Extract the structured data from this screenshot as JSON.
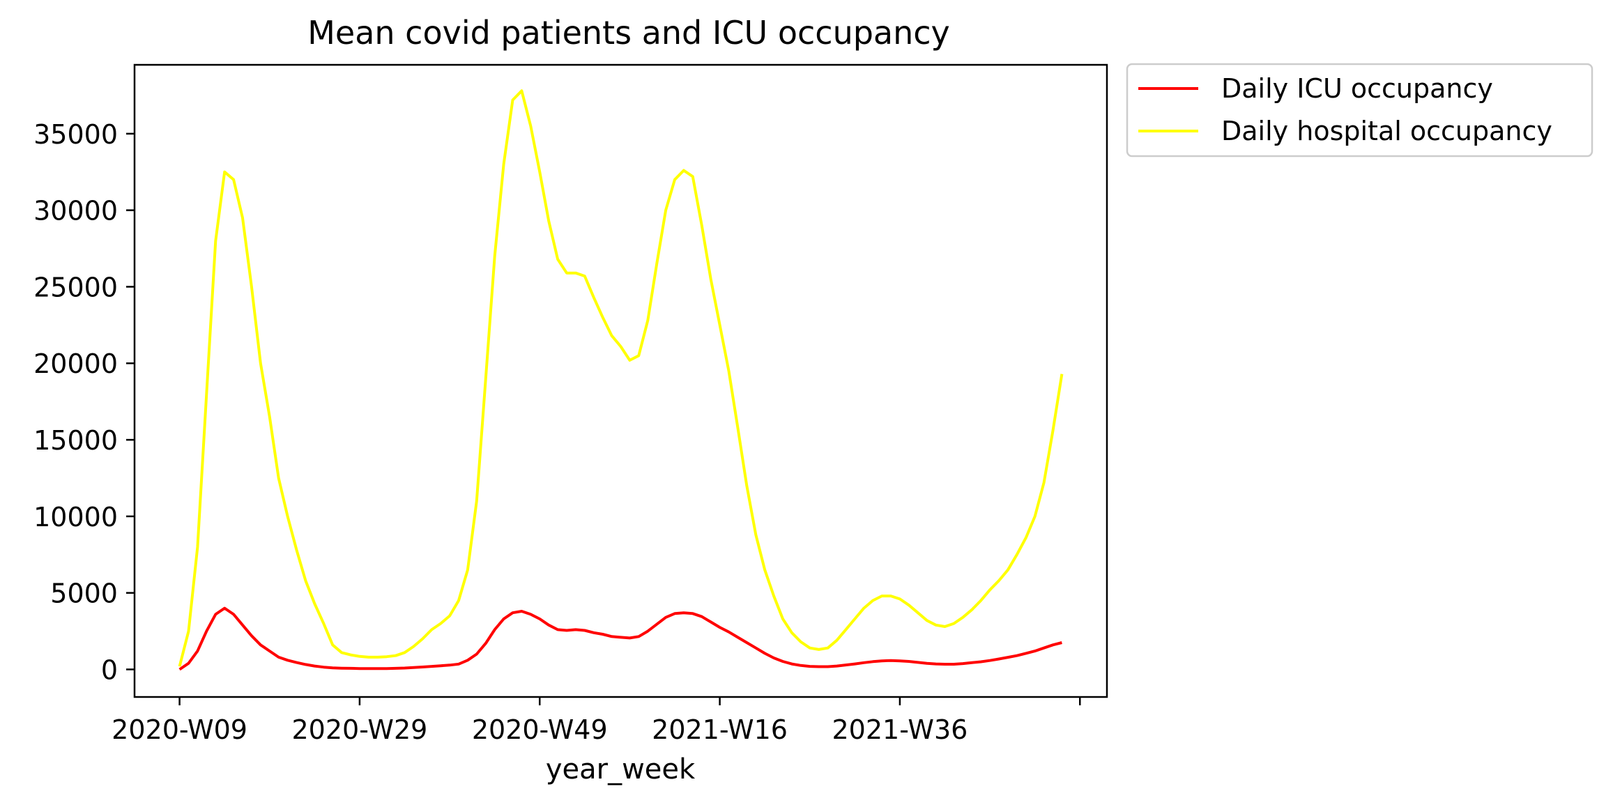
{
  "chart_data": {
    "type": "line",
    "title": "Mean covid patients and ICU occupancy",
    "xlabel": "year_week",
    "ylabel": "",
    "x_tick_labels": [
      "2020-W09",
      "2020-W29",
      "2020-W49",
      "2021-W16",
      "2021-W36",
      ""
    ],
    "y_ticks": [
      0,
      5000,
      10000,
      15000,
      20000,
      25000,
      30000,
      35000
    ],
    "ylim": [
      -1800,
      39500
    ],
    "xlim": [
      -5,
      103
    ],
    "grid": false,
    "legend_position": "outside-top-right",
    "series": [
      {
        "name": "Daily ICU occupancy",
        "color": "#ff0000",
        "x": [
          0,
          1,
          2,
          3,
          4,
          5,
          6,
          7,
          8,
          9,
          10,
          11,
          12,
          13,
          14,
          15,
          16,
          17,
          18,
          19,
          20,
          21,
          22,
          23,
          24,
          25,
          26,
          27,
          28,
          29,
          30,
          31,
          32,
          33,
          34,
          35,
          36,
          37,
          38,
          39,
          40,
          41,
          42,
          43,
          44,
          45,
          46,
          47,
          48,
          49,
          50,
          51,
          52,
          53,
          54,
          55,
          56,
          57,
          58,
          59,
          60,
          61,
          62,
          63,
          64,
          65,
          66,
          67,
          68,
          69,
          70,
          71,
          72,
          73,
          74,
          75,
          76,
          77,
          78,
          79,
          80,
          81,
          82,
          83,
          84,
          85,
          86,
          87,
          88,
          89,
          90,
          91,
          92,
          93,
          94,
          95,
          96,
          97,
          98
        ],
        "values": [
          0,
          400,
          1200,
          2500,
          3600,
          4000,
          3600,
          2900,
          2200,
          1600,
          1200,
          800,
          600,
          450,
          320,
          220,
          150,
          100,
          80,
          70,
          60,
          55,
          55,
          60,
          70,
          90,
          120,
          160,
          200,
          240,
          280,
          350,
          600,
          1000,
          1700,
          2600,
          3300,
          3700,
          3800,
          3600,
          3300,
          2900,
          2600,
          2550,
          2600,
          2550,
          2400,
          2300,
          2150,
          2100,
          2050,
          2150,
          2500,
          2950,
          3400,
          3650,
          3700,
          3650,
          3450,
          3100,
          2750,
          2450,
          2100,
          1750,
          1400,
          1050,
          750,
          520,
          360,
          260,
          200,
          180,
          180,
          220,
          290,
          360,
          440,
          510,
          560,
          580,
          560,
          520,
          460,
          400,
          360,
          340,
          340,
          380,
          440,
          500,
          580,
          680,
          790,
          900,
          1050,
          1200,
          1400,
          1600,
          1750
        ]
      },
      {
        "name": "Daily hospital occupancy",
        "color": "#ffff00",
        "x": [
          0,
          1,
          2,
          3,
          4,
          5,
          6,
          7,
          8,
          9,
          10,
          11,
          12,
          13,
          14,
          15,
          16,
          17,
          18,
          19,
          20,
          21,
          22,
          23,
          24,
          25,
          26,
          27,
          28,
          29,
          30,
          31,
          32,
          33,
          34,
          35,
          36,
          37,
          38,
          39,
          40,
          41,
          42,
          43,
          44,
          45,
          46,
          47,
          48,
          49,
          50,
          51,
          52,
          53,
          54,
          55,
          56,
          57,
          58,
          59,
          60,
          61,
          62,
          63,
          64,
          65,
          66,
          67,
          68,
          69,
          70,
          71,
          72,
          73,
          74,
          75,
          76,
          77,
          78,
          79,
          80,
          81,
          82,
          83,
          84,
          85,
          86,
          87,
          88,
          89,
          90,
          91,
          92,
          93,
          94,
          95,
          96,
          97,
          98
        ],
        "values": [
          200,
          2500,
          8000,
          18000,
          28000,
          32500,
          32000,
          29500,
          25000,
          20000,
          16500,
          12500,
          10000,
          7800,
          5800,
          4300,
          3000,
          1600,
          1100,
          950,
          850,
          800,
          800,
          830,
          900,
          1100,
          1500,
          2000,
          2600,
          3000,
          3500,
          4500,
          6500,
          11000,
          19000,
          27000,
          33000,
          37200,
          37800,
          35500,
          32500,
          29300,
          26800,
          25900,
          25900,
          25700,
          24300,
          23000,
          21800,
          21100,
          20200,
          20500,
          22800,
          26500,
          30000,
          32000,
          32600,
          32200,
          29000,
          25500,
          22500,
          19500,
          15800,
          12000,
          8800,
          6500,
          4800,
          3300,
          2400,
          1800,
          1400,
          1300,
          1400,
          1900,
          2600,
          3300,
          4000,
          4500,
          4800,
          4800,
          4600,
          4200,
          3700,
          3200,
          2900,
          2800,
          3000,
          3400,
          3900,
          4500,
          5200,
          5800,
          6500,
          7500,
          8600,
          10000,
          12200,
          15600,
          19300
        ]
      }
    ]
  }
}
